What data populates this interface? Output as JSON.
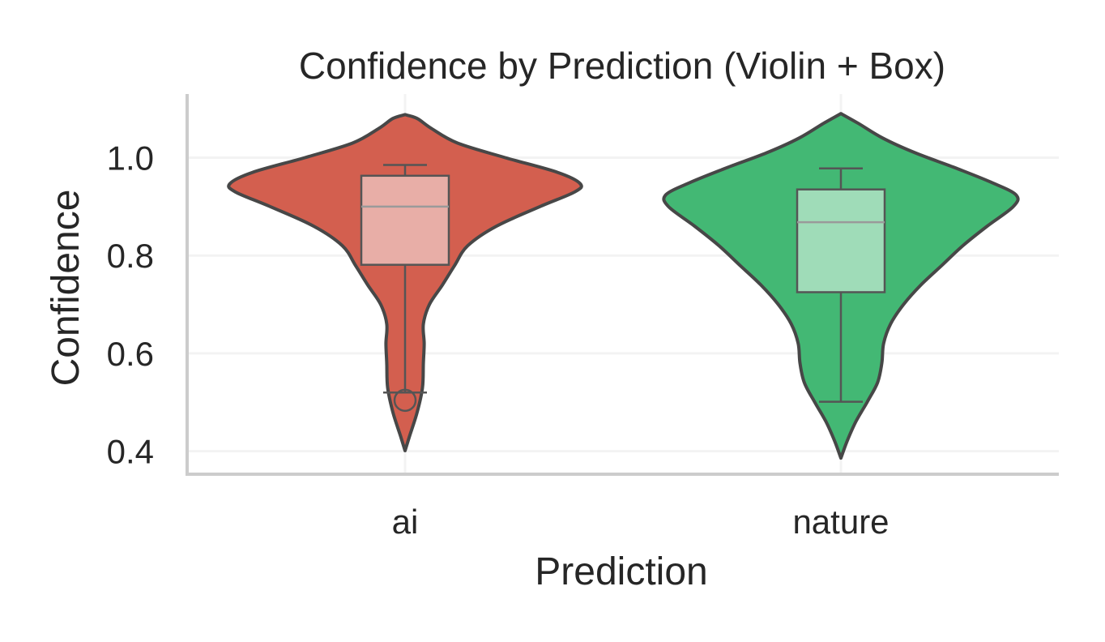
{
  "chart_data": {
    "type": "violin",
    "title": "Confidence by Prediction (Violin + Box)",
    "xlabel": "Prediction",
    "ylabel": "Confidence",
    "categories": [
      "ai",
      "nature"
    ],
    "ylim": [
      0.353,
      1.13
    ],
    "yticks": [
      {
        "value": 0.4,
        "label": "0.4"
      },
      {
        "value": 0.6,
        "label": "0.6"
      },
      {
        "value": 0.8,
        "label": "0.8"
      },
      {
        "value": 1.0,
        "label": "1.0"
      }
    ],
    "grid": true,
    "series": [
      {
        "category": "ai",
        "violin_color": "#d35f4f",
        "box_color": "#e8aea7",
        "box": {
          "whisker_low": 0.52,
          "q1": 0.781,
          "median": 0.9,
          "q3": 0.963,
          "whisker_high": 0.985
        },
        "outliers": [
          0.504
        ],
        "density_profile": [
          {
            "y": 0.401,
            "w": 0.0
          },
          {
            "y": 0.43,
            "w": 0.05
          },
          {
            "y": 0.48,
            "w": 0.14
          },
          {
            "y": 0.53,
            "w": 0.2
          },
          {
            "y": 0.58,
            "w": 0.21
          },
          {
            "y": 0.62,
            "w": 0.22
          },
          {
            "y": 0.66,
            "w": 0.21
          },
          {
            "y": 0.7,
            "w": 0.28
          },
          {
            "y": 0.74,
            "w": 0.43
          },
          {
            "y": 0.78,
            "w": 0.57
          },
          {
            "y": 0.82,
            "w": 0.72
          },
          {
            "y": 0.86,
            "w": 1.05
          },
          {
            "y": 0.9,
            "w": 1.55
          },
          {
            "y": 0.93,
            "w": 1.95
          },
          {
            "y": 0.947,
            "w": 2.01
          },
          {
            "y": 0.97,
            "w": 1.75
          },
          {
            "y": 1.0,
            "w": 1.15
          },
          {
            "y": 1.03,
            "w": 0.6
          },
          {
            "y": 1.06,
            "w": 0.3
          },
          {
            "y": 1.08,
            "w": 0.14
          },
          {
            "y": 1.088,
            "w": 0.0
          }
        ]
      },
      {
        "category": "nature",
        "violin_color": "#43b874",
        "box_color": "#9fdcb8",
        "box": {
          "whisker_low": 0.501,
          "q1": 0.725,
          "median": 0.868,
          "q3": 0.935,
          "whisker_high": 0.978
        },
        "outliers": [],
        "density_profile": [
          {
            "y": 0.386,
            "w": 0.0
          },
          {
            "y": 0.42,
            "w": 0.07
          },
          {
            "y": 0.46,
            "w": 0.17
          },
          {
            "y": 0.5,
            "w": 0.3
          },
          {
            "y": 0.54,
            "w": 0.42
          },
          {
            "y": 0.58,
            "w": 0.47
          },
          {
            "y": 0.62,
            "w": 0.49
          },
          {
            "y": 0.66,
            "w": 0.57
          },
          {
            "y": 0.7,
            "w": 0.72
          },
          {
            "y": 0.74,
            "w": 0.92
          },
          {
            "y": 0.78,
            "w": 1.16
          },
          {
            "y": 0.82,
            "w": 1.4
          },
          {
            "y": 0.86,
            "w": 1.68
          },
          {
            "y": 0.9,
            "w": 1.98
          },
          {
            "y": 0.924,
            "w": 2.01
          },
          {
            "y": 0.95,
            "w": 1.72
          },
          {
            "y": 0.98,
            "w": 1.3
          },
          {
            "y": 1.01,
            "w": 0.85
          },
          {
            "y": 1.04,
            "w": 0.48
          },
          {
            "y": 1.07,
            "w": 0.2
          },
          {
            "y": 1.09,
            "w": 0.0
          }
        ]
      }
    ]
  }
}
